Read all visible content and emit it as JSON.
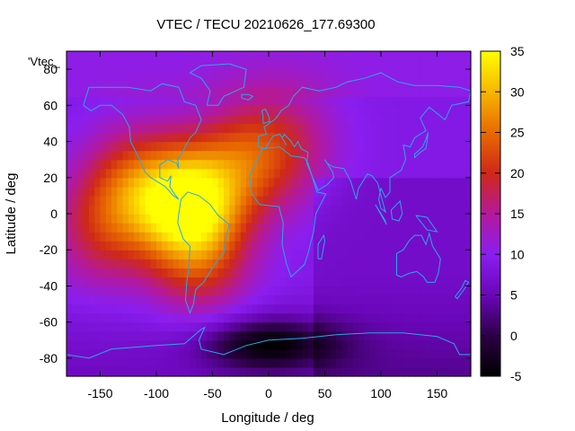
{
  "chart_data": {
    "type": "heatmap",
    "title": "VTEC / TECU 20210626_177.69300",
    "xlabel": "Longitude / deg",
    "ylabel": "Latitude / deg",
    "key_label": "'Vtec_",
    "xlim": [
      -180,
      180
    ],
    "ylim": [
      -90,
      90
    ],
    "x_ticks": [
      -150,
      -100,
      -50,
      0,
      50,
      100,
      150
    ],
    "y_ticks": [
      -80,
      -60,
      -40,
      -20,
      0,
      20,
      40,
      60,
      80
    ],
    "colorbar": {
      "range": [
        -5,
        35
      ],
      "ticks": [
        -5,
        0,
        5,
        10,
        15,
        20,
        25,
        30,
        35
      ],
      "palette": "black-purple-red-orange-yellow"
    },
    "field": {
      "description": "Vertical total electron content field",
      "background": 9,
      "peaks": [
        {
          "lon": -70,
          "lat": 5,
          "value": 34
        },
        {
          "lon": -120,
          "lat": 15,
          "value": 21
        },
        {
          "lon": -20,
          "lat": 30,
          "value": 20
        },
        {
          "lon": 20,
          "lat": 40,
          "value": 15
        },
        {
          "lon": -150,
          "lat": -10,
          "value": 17
        },
        {
          "lon": -60,
          "lat": -30,
          "value": 17
        }
      ],
      "minimum": {
        "lon": 0,
        "lat": -72,
        "value": -3
      }
    }
  }
}
